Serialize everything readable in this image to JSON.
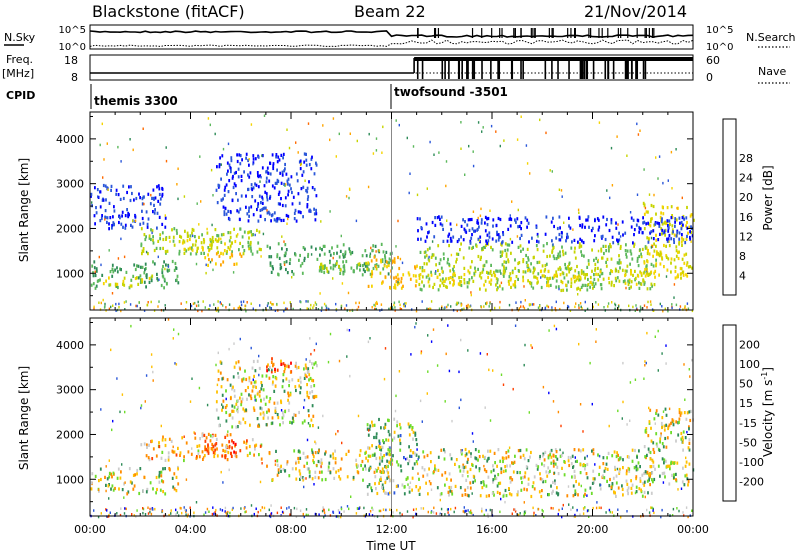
{
  "header": {
    "station": "Blackstone (fitACF)",
    "beam": "Beam 22",
    "date": "21/Nov/2014"
  },
  "summary_panel": {
    "nsky_label": "N.Sky",
    "nsky_ticks": [
      "10^5",
      "10^0"
    ],
    "nsearch_label": "N.Search",
    "nsearch_ticks": [
      "10^5",
      "10^0"
    ],
    "freq_label": "Freq.",
    "freq_unit": "[MHz]",
    "freq_ticks": [
      "18",
      "8"
    ],
    "nave_label": "Nave",
    "nave_ticks": [
      "60",
      "0"
    ],
    "cpid_label": "CPID",
    "programs": [
      {
        "name": "themis 3300",
        "start_hour": 0
      },
      {
        "name": "twofsound -3501",
        "start_hour": 12.0
      }
    ]
  },
  "chart_data": [
    {
      "type": "heatmap",
      "name": "power",
      "ylabel": "Slant Range [km]",
      "xlabel": "Time UT",
      "x_ticks": [
        "00:00",
        "04:00",
        "08:00",
        "12:00",
        "16:00",
        "20:00",
        "00:00"
      ],
      "x_range_hours": [
        0,
        24
      ],
      "ylim": [
        180,
        4600
      ],
      "y_ticks": [
        1000,
        2000,
        3000,
        4000
      ],
      "colorbar": {
        "label": "Power [dB]",
        "ticks": [
          "4",
          "8",
          "12",
          "16",
          "20",
          "24",
          "28"
        ],
        "colors": [
          "#0000ff",
          "#2b57d9",
          "#2e8b57",
          "#5cb85c",
          "#c7d400",
          "#f5d400",
          "#ffa500",
          "#ff6a00",
          "#ff0000"
        ]
      },
      "echo_bands": [
        {
          "t0": 0.0,
          "t1": 3.5,
          "r0": 700,
          "r1": 1300,
          "value": 12
        },
        {
          "t0": 0.5,
          "t1": 2.5,
          "r0": 750,
          "r1": 1000,
          "value": 20
        },
        {
          "t0": 2.0,
          "t1": 6.8,
          "r0": 1450,
          "r1": 2050,
          "value": 16
        },
        {
          "t0": 3.5,
          "t1": 6.0,
          "r0": 1500,
          "r1": 1800,
          "value": 20
        },
        {
          "t0": 4.5,
          "t1": 6.0,
          "r0": 1200,
          "r1": 1500,
          "value": 24
        },
        {
          "t0": 7.0,
          "t1": 12.0,
          "r0": 1000,
          "r1": 1700,
          "value": 12
        },
        {
          "t0": 9.0,
          "t1": 11.8,
          "r0": 1000,
          "r1": 1300,
          "value": 16
        },
        {
          "t0": 11.0,
          "t1": 13.0,
          "r0": 700,
          "r1": 1400,
          "value": 24
        },
        {
          "t0": 13.0,
          "t1": 22.5,
          "r0": 650,
          "r1": 1700,
          "value": 16
        },
        {
          "t0": 13.0,
          "t1": 22.5,
          "r0": 750,
          "r1": 1100,
          "value": 20
        },
        {
          "t0": 22.0,
          "t1": 24.0,
          "r0": 900,
          "r1": 2600,
          "value": 20
        },
        {
          "t0": 5.0,
          "t1": 9.0,
          "r0": 2200,
          "r1": 3700,
          "value": 4
        },
        {
          "t0": 13.0,
          "t1": 24.0,
          "r0": 1700,
          "r1": 2300,
          "value": 4
        },
        {
          "t0": 0.0,
          "t1": 3.0,
          "r0": 2000,
          "r1": 3000,
          "value": 4
        }
      ]
    },
    {
      "type": "heatmap",
      "name": "velocity",
      "ylabel": "Slant Range [km]",
      "xlabel": "Time UT",
      "x_ticks": [
        "00:00",
        "04:00",
        "08:00",
        "12:00",
        "16:00",
        "20:00",
        "00:00"
      ],
      "x_range_hours": [
        0,
        24
      ],
      "ylim": [
        180,
        4600
      ],
      "y_ticks": [
        1000,
        2000,
        3000,
        4000
      ],
      "colorbar": {
        "label": "Velocity [m s",
        "label_exponent": "-1",
        "label_close": "]",
        "ticks": [
          "200",
          "100",
          "50",
          "15",
          "-15",
          "-50",
          "-100",
          "-200"
        ],
        "colors": [
          "#0000ff",
          "#2b57d9",
          "#2e8b57",
          "#6ddc2a",
          "#cccccc",
          "#ffc000",
          "#ff8c00",
          "#ff4000",
          "#ff0000"
        ]
      },
      "echo_bands": [
        {
          "t0": 0.0,
          "t1": 3.5,
          "r0": 700,
          "r1": 1300,
          "value": 0
        },
        {
          "t0": 2.0,
          "t1": 6.8,
          "r0": 1450,
          "r1": 2050,
          "value": -50
        },
        {
          "t0": 4.5,
          "t1": 6.0,
          "r0": 1600,
          "r1": 1900,
          "value": -150
        },
        {
          "t0": 7.0,
          "t1": 12.0,
          "r0": 1000,
          "r1": 1700,
          "value": 0
        },
        {
          "t0": 11.0,
          "t1": 13.0,
          "r0": 700,
          "r1": 2400,
          "value": 30
        },
        {
          "t0": 13.0,
          "t1": 22.5,
          "r0": 650,
          "r1": 1700,
          "value": 0
        },
        {
          "t0": 22.0,
          "t1": 24.0,
          "r0": 900,
          "r1": 2600,
          "value": 0
        },
        {
          "t0": 5.0,
          "t1": 9.0,
          "r0": 2200,
          "r1": 3700,
          "value": 0
        },
        {
          "t0": 7.0,
          "t1": 8.0,
          "r0": 3400,
          "r1": 3800,
          "value": -150
        }
      ]
    }
  ]
}
